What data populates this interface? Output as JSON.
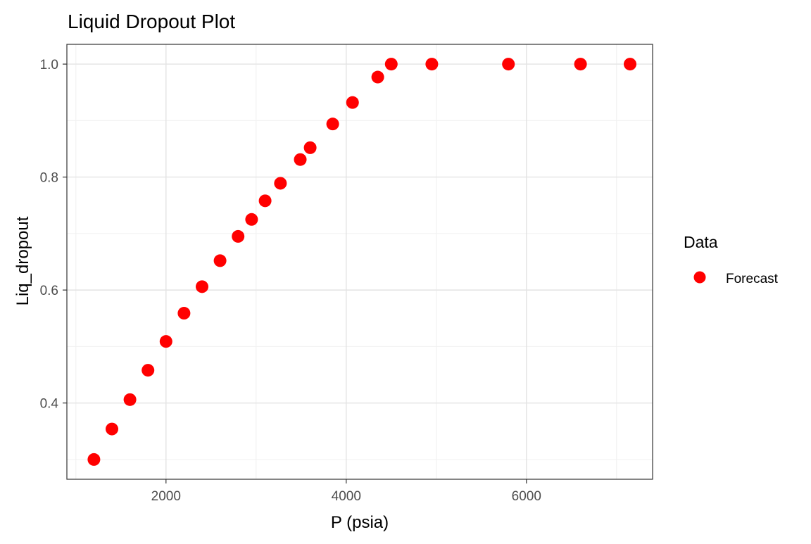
{
  "chart_data": {
    "type": "scatter",
    "title": "Liquid Dropout Plot",
    "xlabel": "P (psia)",
    "ylabel": "Liq_dropout",
    "xlim": [
      900,
      7400
    ],
    "ylim": [
      0.265,
      1.035
    ],
    "x_ticks": [
      2000,
      4000,
      6000
    ],
    "x_tick_labels": [
      "2000",
      "4000",
      "6000"
    ],
    "x_minor_ticks": [
      1000,
      3000,
      5000,
      7000
    ],
    "y_ticks": [
      0.4,
      0.6,
      0.8,
      1.0
    ],
    "y_tick_labels": [
      "0.4",
      "0.6",
      "0.8",
      "1.0"
    ],
    "y_minor_ticks": [
      0.3,
      0.5,
      0.7,
      0.9
    ],
    "grid": true,
    "legend": {
      "title": "Data",
      "position": "right"
    },
    "series": [
      {
        "name": "Forecast",
        "color": "#ff0000",
        "x": [
          1200,
          1400,
          1600,
          1800,
          2000,
          2200,
          2400,
          2600,
          2800,
          2950,
          3100,
          3270,
          3490,
          3600,
          3850,
          4070,
          4350,
          4500,
          4950,
          5800,
          6600,
          7150
        ],
        "y": [
          0.3,
          0.354,
          0.406,
          0.458,
          0.509,
          0.559,
          0.606,
          0.652,
          0.695,
          0.725,
          0.758,
          0.789,
          0.831,
          0.852,
          0.894,
          0.932,
          0.977,
          1.0,
          1.0,
          1.0,
          1.0,
          1.0
        ]
      }
    ]
  }
}
